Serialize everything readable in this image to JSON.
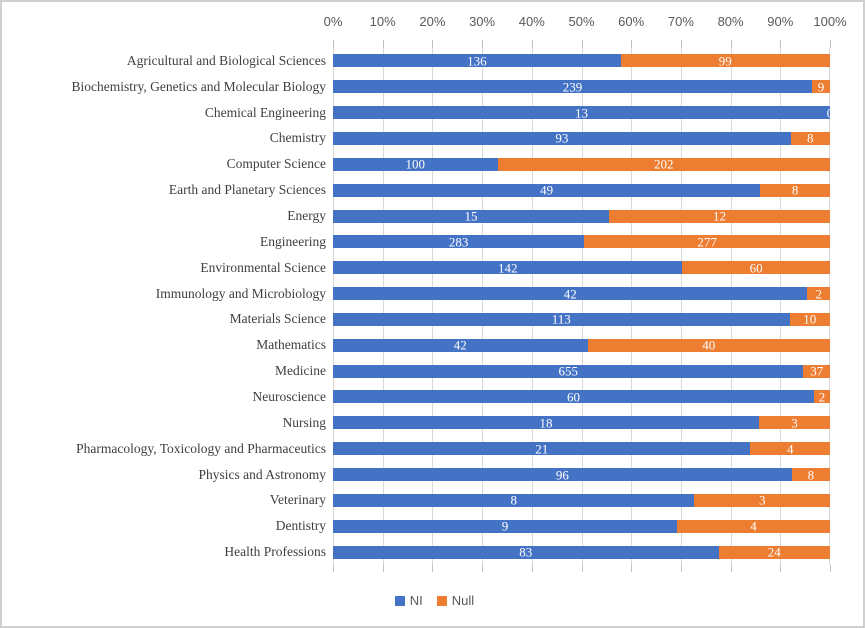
{
  "chart_data": {
    "type": "bar",
    "subtype": "horizontal-100pct-stacked",
    "title": "",
    "xlabel": "",
    "ylabel": "",
    "x_axis_position": "top",
    "x_tick_labels": [
      "0%",
      "10%",
      "20%",
      "30%",
      "40%",
      "50%",
      "60%",
      "70%",
      "80%",
      "90%",
      "100%"
    ],
    "xlim": [
      0,
      100
    ],
    "grid": true,
    "legend_position": "bottom",
    "series_names": [
      "NI",
      "Null"
    ],
    "series_colors": [
      "#4472C4",
      "#ED7D31"
    ],
    "categories": [
      "Agricultural and Biological Sciences",
      "Biochemistry, Genetics and Molecular Biology",
      "Chemical Engineering",
      "Chemistry",
      "Computer Science",
      "Earth and Planetary Sciences",
      "Energy",
      "Engineering",
      "Environmental Science",
      "Immunology and Microbiology",
      "Materials Science",
      "Mathematics",
      "Medicine",
      "Neuroscience",
      "Nursing",
      "Pharmacology, Toxicology and Pharmaceutics",
      "Physics and Astronomy",
      "Veterinary",
      "Dentistry",
      "Health Professions"
    ],
    "series": [
      {
        "name": "NI",
        "values": [
          136,
          239,
          13,
          93,
          100,
          49,
          15,
          283,
          142,
          42,
          113,
          42,
          655,
          60,
          18,
          21,
          96,
          8,
          9,
          83
        ]
      },
      {
        "name": "Null",
        "values": [
          99,
          9,
          0,
          8,
          202,
          8,
          12,
          277,
          60,
          2,
          10,
          40,
          37,
          2,
          3,
          4,
          8,
          3,
          4,
          24
        ]
      }
    ]
  },
  "legend": {
    "items": [
      {
        "label": "NI",
        "color": "#4472C4"
      },
      {
        "label": "Null",
        "color": "#ED7D31"
      }
    ]
  },
  "colors": {
    "ni_blue": "#4472C4",
    "null_orange": "#ED7D31",
    "gridline": "#D9D9D9",
    "axis_text": "#595959",
    "category_text": "#3F3F3F",
    "data_label_text": "#FFFFFF",
    "frame_border": "#D0D0D0"
  }
}
